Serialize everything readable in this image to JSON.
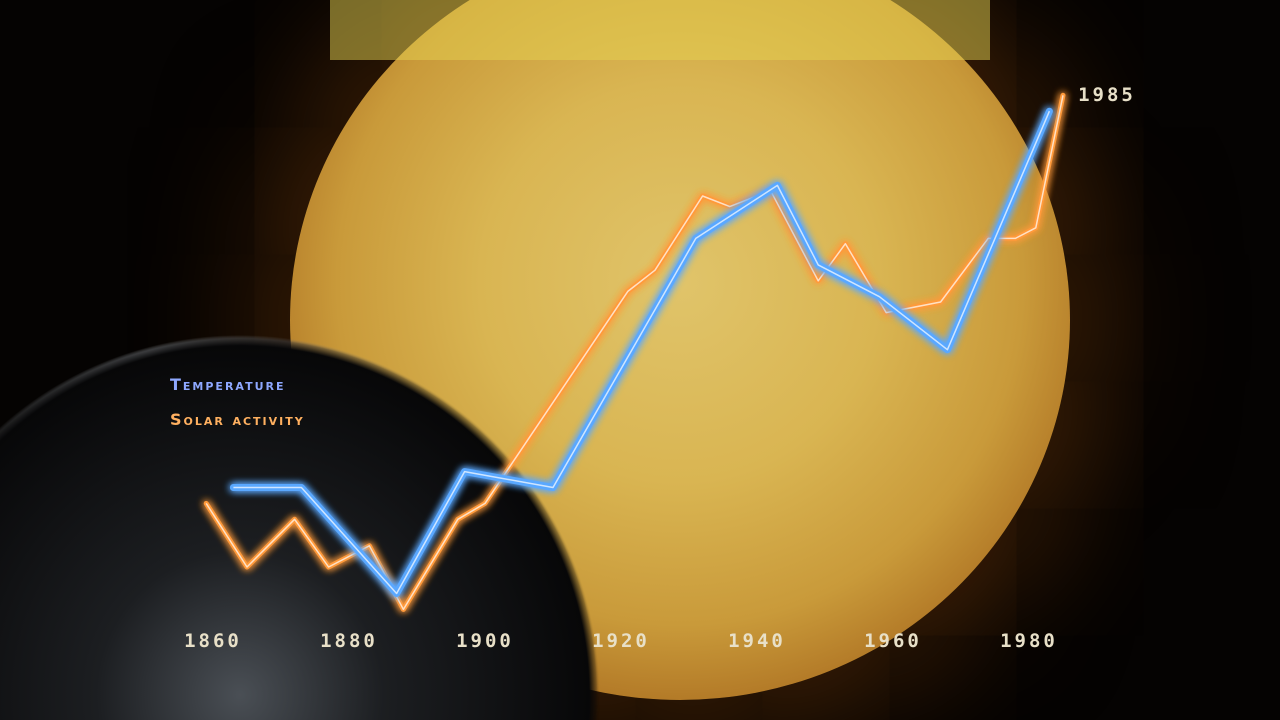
{
  "chart_data": {
    "type": "line",
    "title": "",
    "xlabel": "",
    "ylabel": "",
    "xlim": [
      1855,
      1990
    ],
    "ylim": [
      0,
      100
    ],
    "x_ticks": [
      "1860",
      "1880",
      "1900",
      "1920",
      "1940",
      "1960",
      "1980"
    ],
    "end_label": "1985",
    "grid": false,
    "legend_placement": "left",
    "series": [
      {
        "name": "Temperature",
        "color": "#5aa8ff",
        "x": [
          1863,
          1873,
          1887,
          1897,
          1910,
          1931,
          1943,
          1949,
          1958,
          1968,
          1983
        ],
        "y": [
          25,
          25,
          5,
          28,
          25,
          72,
          82,
          67,
          61,
          51,
          96
        ]
      },
      {
        "name": "Solar activity",
        "color": "#ff9a3a",
        "x": [
          1859,
          1865,
          1872,
          1877,
          1883,
          1888,
          1896,
          1900,
          1921,
          1925,
          1932,
          1936,
          1942,
          1949,
          1953,
          1959,
          1967,
          1974,
          1978,
          1981,
          1985
        ],
        "y": [
          22,
          10,
          19,
          10,
          14,
          2,
          19,
          22,
          62,
          66,
          80,
          78,
          81,
          64,
          71,
          58,
          60,
          72,
          72,
          74,
          99
        ]
      }
    ]
  },
  "legend": {
    "temperature": "Temperature",
    "solar": "Solar activity"
  }
}
